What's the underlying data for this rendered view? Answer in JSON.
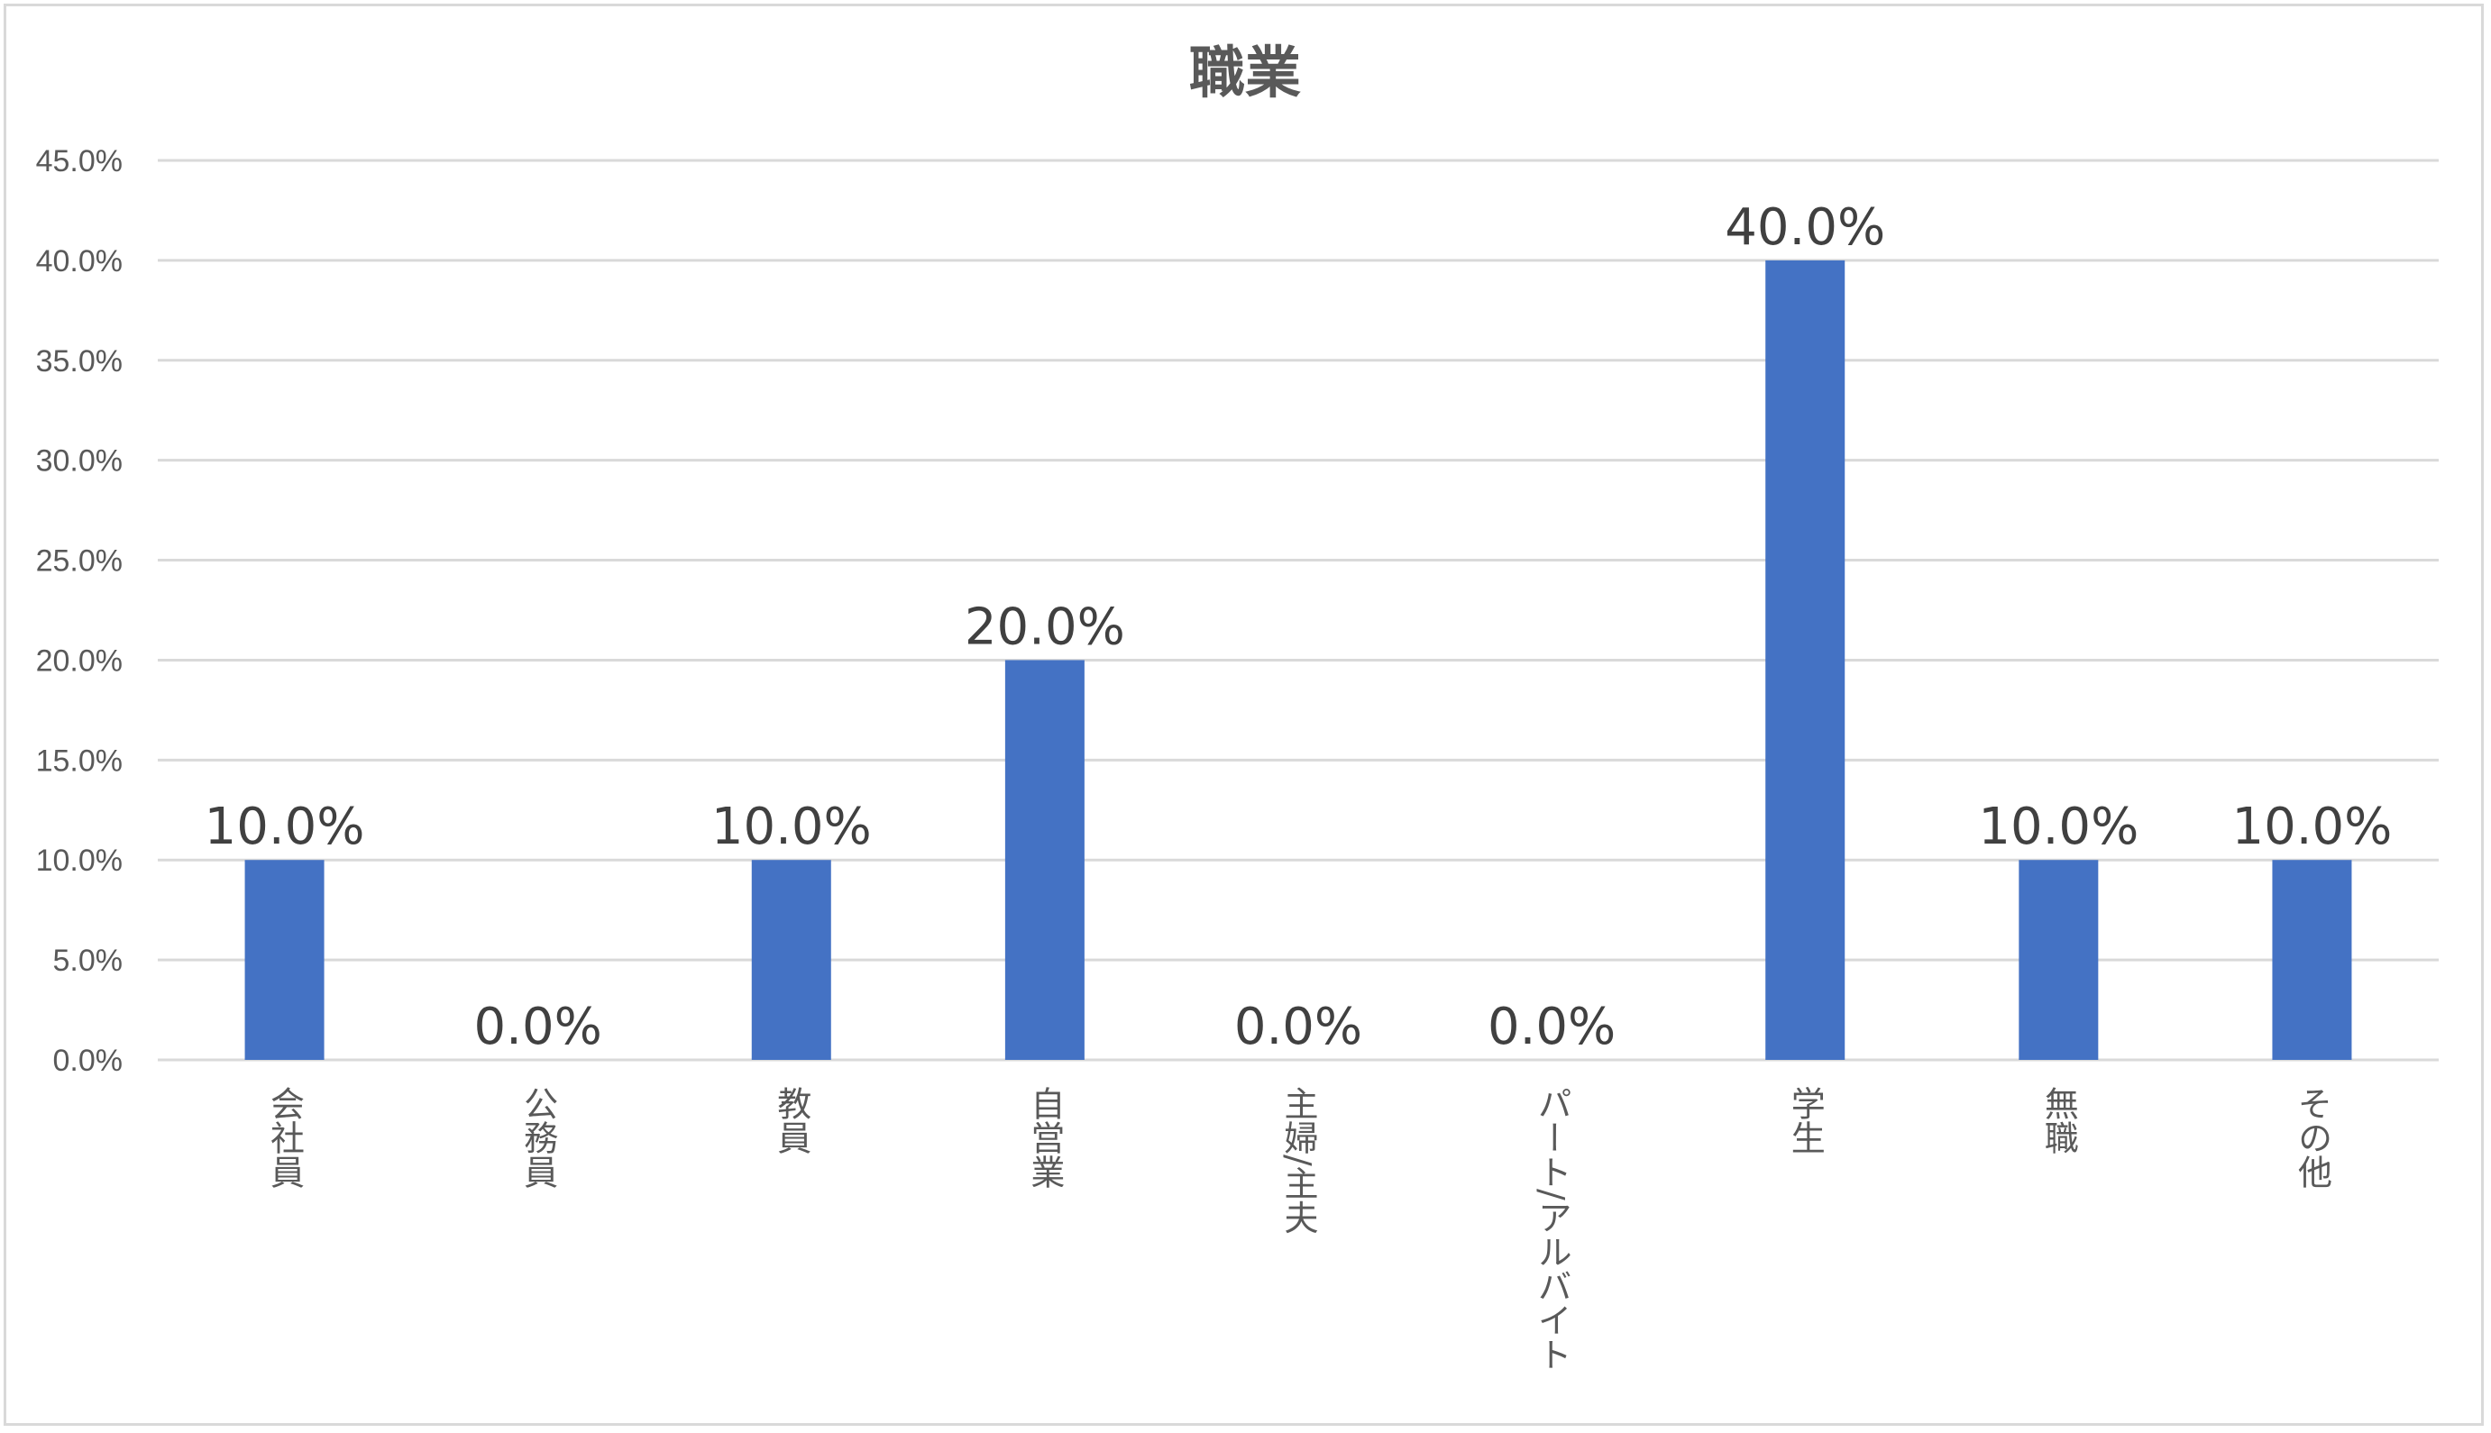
{
  "chart_data": {
    "type": "bar",
    "title": "職業",
    "xlabel": "",
    "ylabel": "",
    "categories": [
      "会社員",
      "公務員",
      "教員",
      "自営業",
      "主婦/主夫",
      "パート/アルバイト",
      "学生",
      "無職",
      "その他"
    ],
    "values": [
      10.0,
      0.0,
      10.0,
      20.0,
      0.0,
      0.0,
      40.0,
      10.0,
      10.0
    ],
    "data_labels": [
      "10.0%",
      "0.0%",
      "10.0%",
      "20.0%",
      "0.0%",
      "0.0%",
      "40.0%",
      "10.0%",
      "10.0%"
    ],
    "y_ticks": [
      "0.0%",
      "5.0%",
      "10.0%",
      "15.0%",
      "20.0%",
      "25.0%",
      "30.0%",
      "35.0%",
      "40.0%",
      "45.0%"
    ],
    "ylim": [
      0,
      45
    ],
    "grid": true,
    "legend": "none",
    "bar_color": "#4472c4",
    "grid_color": "#d9d9d9"
  }
}
